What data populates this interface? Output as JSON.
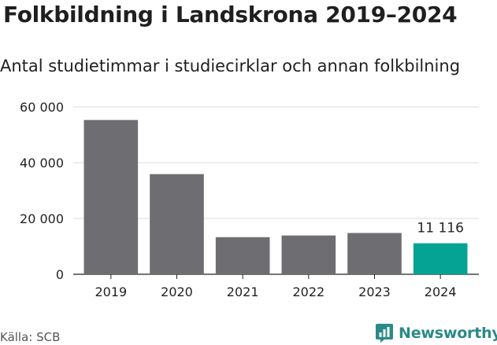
{
  "title": "Folkbildning i Landskrona 2019–2024",
  "subtitle": "Antal studietimmar i studiecirklar och annan folkbilning",
  "source": "Källa: SCB",
  "brand": {
    "name": "Newsworthy",
    "icon": "newsworthy-logo-icon",
    "color": "#2a8a87"
  },
  "colors": {
    "bar": "#6e6d72",
    "highlight": "#04a394",
    "grid": "#dddddd",
    "axis": "#222222"
  },
  "chart_data": {
    "type": "bar",
    "categories": [
      "2019",
      "2020",
      "2021",
      "2022",
      "2023",
      "2024"
    ],
    "values": [
      55300,
      35900,
      13300,
      13900,
      14800,
      11116
    ],
    "highlight_index": 5,
    "data_labels": [
      {
        "index": 5,
        "text": "11 116"
      }
    ],
    "yticks": [
      0,
      20000,
      40000,
      60000
    ],
    "ytick_labels": [
      "0",
      "20 000",
      "40 000",
      "60 000"
    ],
    "ylim": [
      0,
      60000
    ],
    "grid": true,
    "legend": "none"
  }
}
